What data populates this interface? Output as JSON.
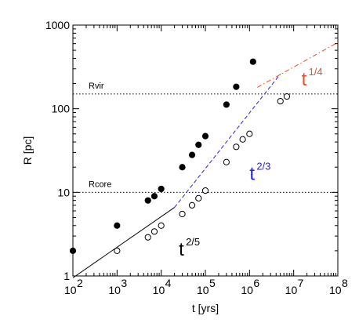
{
  "chart_data": {
    "type": "scatter",
    "title": "",
    "xlabel": "t [yrs]",
    "ylabel": "R [pc]",
    "xscale": "log",
    "yscale": "log",
    "xlim": [
      100,
      100000000
    ],
    "ylim": [
      1,
      1000
    ],
    "x_ticks": [
      {
        "value": 100,
        "base": "10",
        "exp": "2"
      },
      {
        "value": 1000,
        "base": "10",
        "exp": "3"
      },
      {
        "value": 10000,
        "base": "10",
        "exp": "4"
      },
      {
        "value": 100000,
        "base": "10",
        "exp": "5"
      },
      {
        "value": 1000000,
        "base": "10",
        "exp": "6"
      },
      {
        "value": 10000000,
        "base": "10",
        "exp": "7"
      },
      {
        "value": 100000000,
        "base": "10",
        "exp": "8"
      }
    ],
    "y_ticks": [
      {
        "value": 1,
        "label": "1"
      },
      {
        "value": 10,
        "label": "10"
      },
      {
        "value": 100,
        "label": "100"
      },
      {
        "value": 1000,
        "label": "1000"
      }
    ],
    "reference_lines": [
      {
        "label": "Rvir",
        "y": 150
      },
      {
        "label": "Rcore",
        "y": 10
      }
    ],
    "series": [
      {
        "marker": "filled-circle",
        "color": "#000000",
        "points": [
          {
            "x": 100,
            "y": 2
          },
          {
            "x": 1000,
            "y": 4
          },
          {
            "x": 5000,
            "y": 8
          },
          {
            "x": 7000,
            "y": 9
          },
          {
            "x": 10000,
            "y": 11
          },
          {
            "x": 30000,
            "y": 20
          },
          {
            "x": 50000,
            "y": 28
          },
          {
            "x": 70000,
            "y": 37
          },
          {
            "x": 100000,
            "y": 47
          },
          {
            "x": 300000,
            "y": 112
          },
          {
            "x": 500000,
            "y": 183
          },
          {
            "x": 1200000,
            "y": 365
          }
        ]
      },
      {
        "marker": "open-circle",
        "color": "#000000",
        "points": [
          {
            "x": 1000,
            "y": 2
          },
          {
            "x": 5000,
            "y": 2.9
          },
          {
            "x": 7000,
            "y": 3.4
          },
          {
            "x": 10000,
            "y": 4
          },
          {
            "x": 30000,
            "y": 5.5
          },
          {
            "x": 50000,
            "y": 7
          },
          {
            "x": 70000,
            "y": 8.5
          },
          {
            "x": 100000,
            "y": 10.5
          },
          {
            "x": 300000,
            "y": 23
          },
          {
            "x": 500000,
            "y": 35
          },
          {
            "x": 700000,
            "y": 43
          },
          {
            "x": 1000000,
            "y": 50
          },
          {
            "x": 5000000,
            "y": 123
          },
          {
            "x": 7000000,
            "y": 140
          }
        ]
      }
    ],
    "fit_lines": [
      {
        "label_base": "t",
        "label_exp": "2/5",
        "color": "#000000",
        "dash": "solid",
        "from": [
          100,
          0.95
        ],
        "to": [
          20000,
          6.6
        ],
        "label_at": [
          25000,
          1.75
        ]
      },
      {
        "label_base": "t",
        "label_exp": "2/3",
        "color": "#2222dd",
        "dash": "dashed",
        "from": [
          20000,
          6.6
        ],
        "to": [
          5000000,
          260
        ],
        "label_at": [
          1000000,
          14
        ]
      },
      {
        "label_base": "t",
        "label_exp": "1/4",
        "color": "#e8502a",
        "dash": "dashdot",
        "from": [
          1500000,
          180
        ],
        "to": [
          100000000,
          620
        ],
        "label_at": [
          15000000,
          190
        ]
      }
    ]
  }
}
